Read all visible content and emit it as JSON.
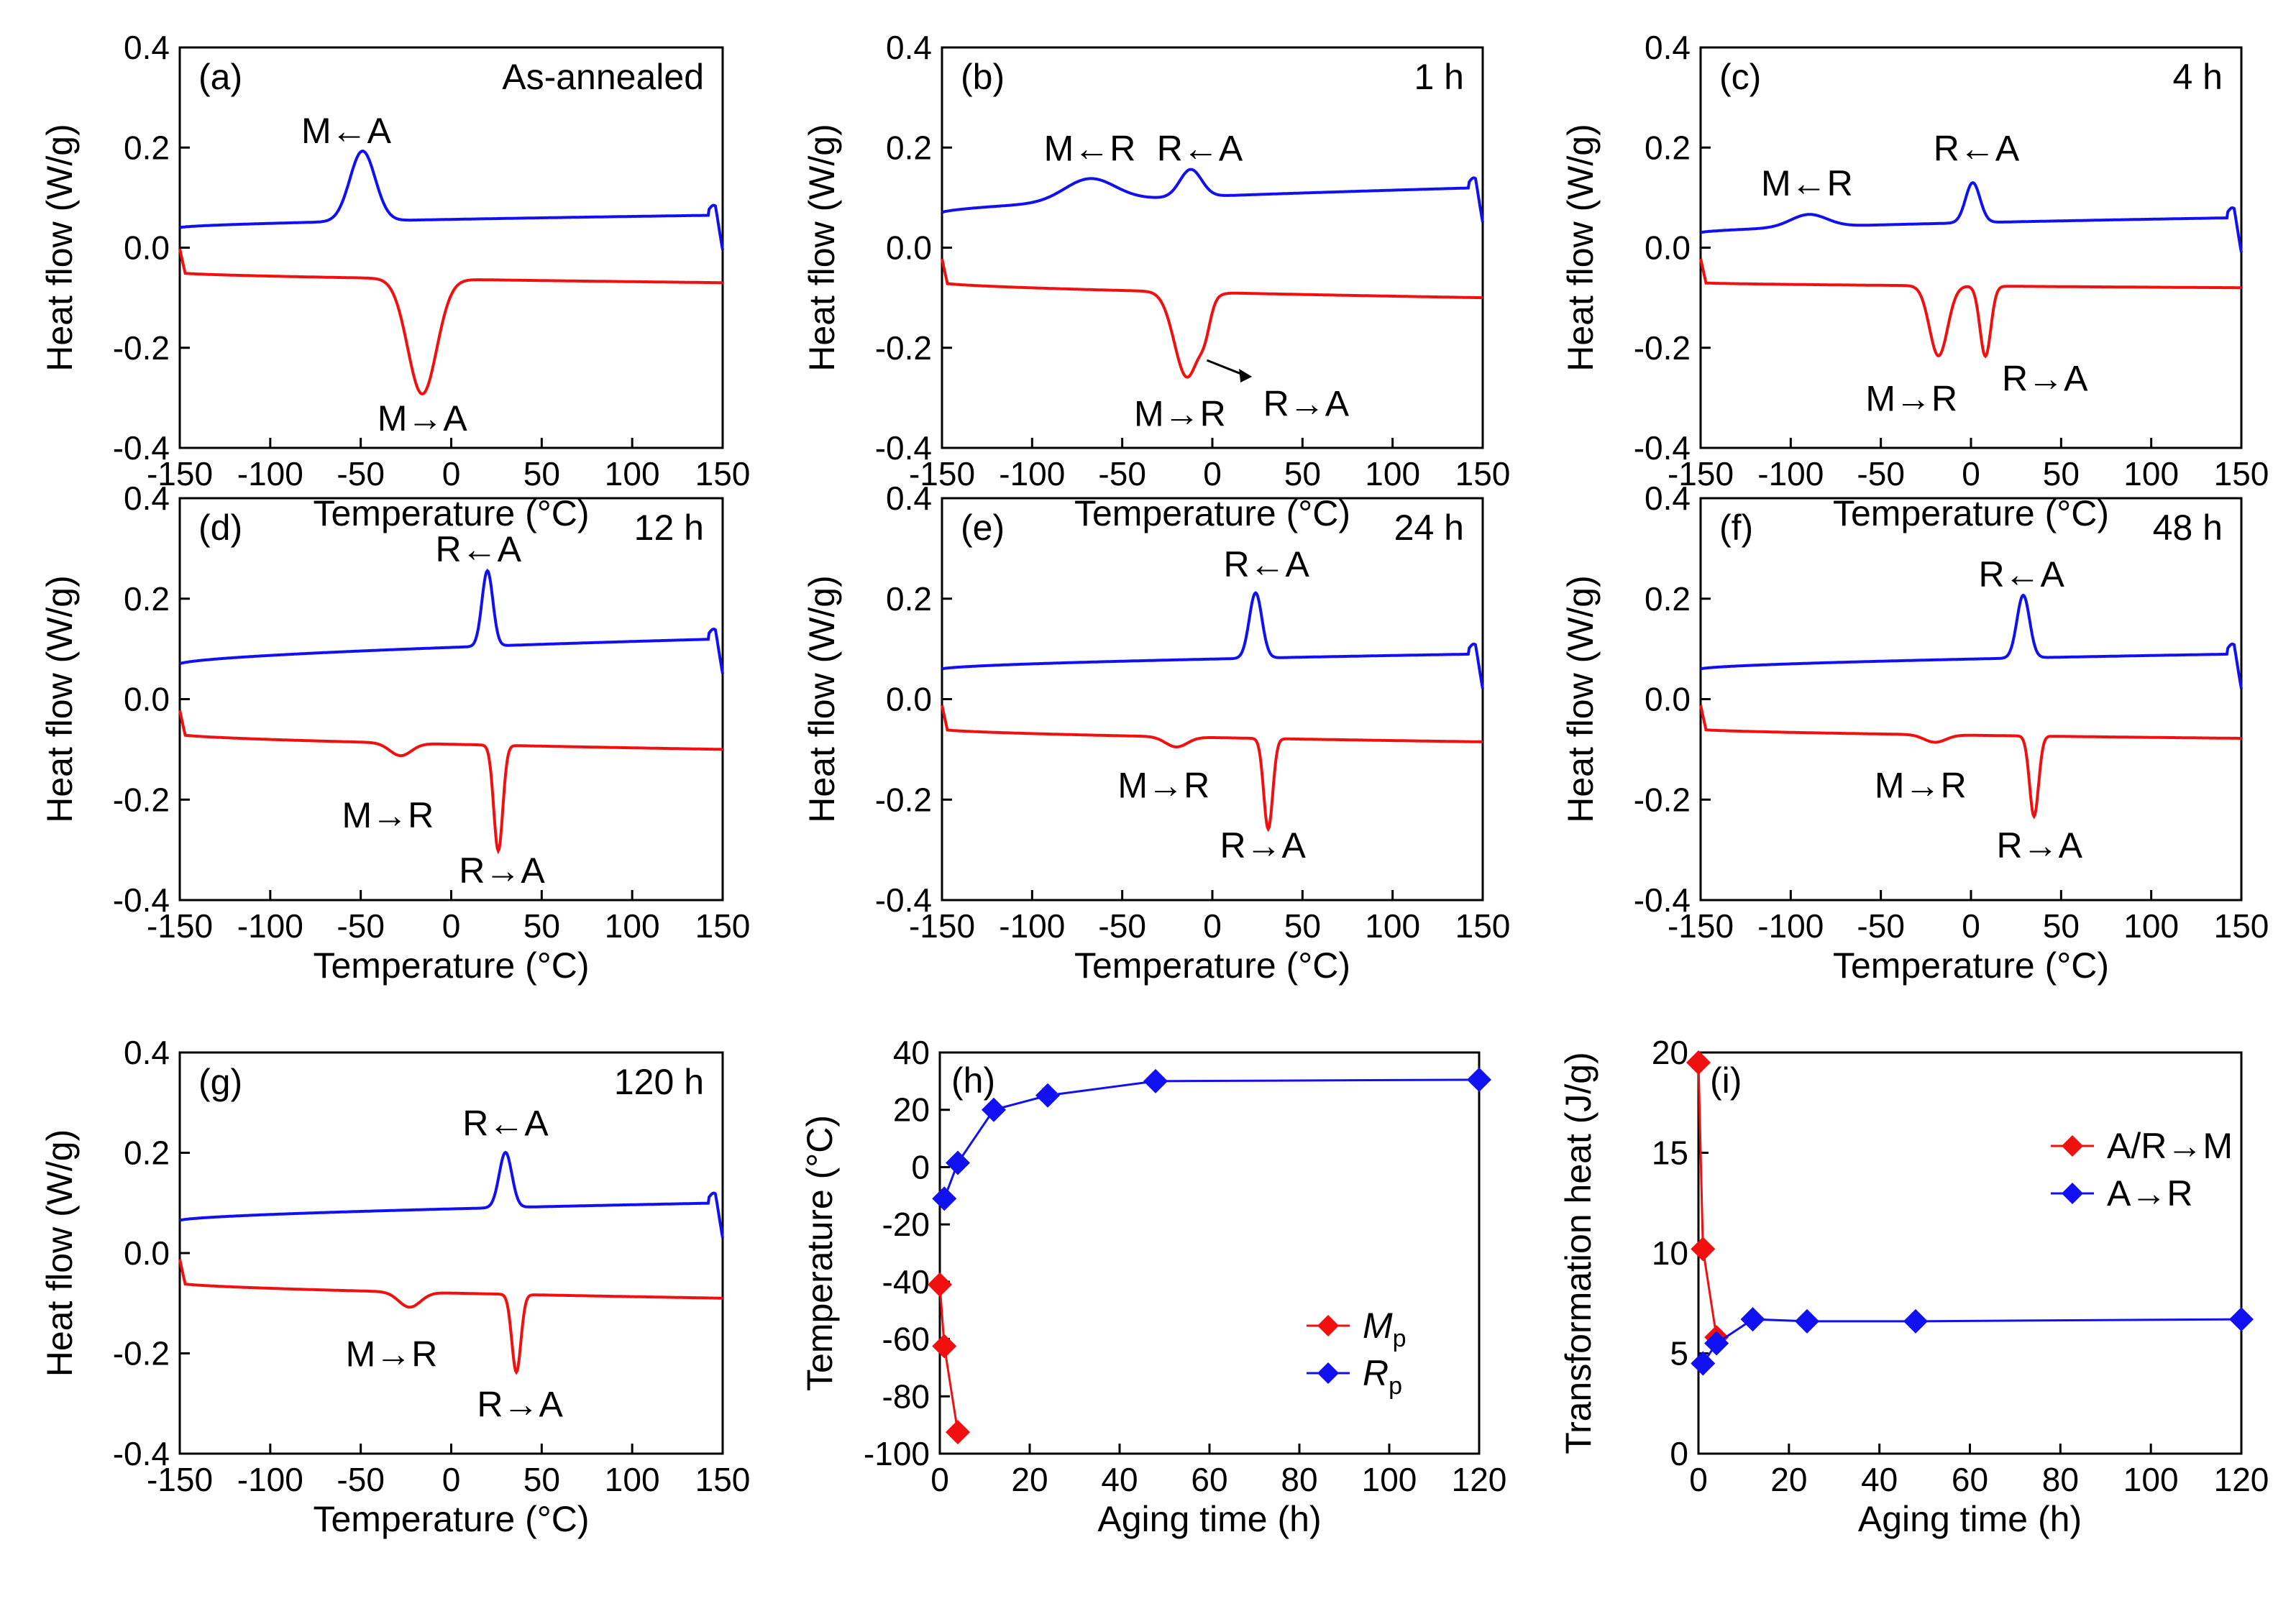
{
  "figure": {
    "colors": {
      "blue": "#1010f0",
      "red": "#f01010",
      "axis": "#000000"
    },
    "dsc_panels": [
      {
        "id": "a",
        "label": "(a)",
        "condition": "As-annealed",
        "xlabel": "Temperature (°C)",
        "ylabel": "Heat flow (W/g)",
        "ylim": [
          -0.4,
          0.4
        ],
        "xlim": [
          -150,
          150
        ],
        "xticks": [
          "-150",
          "-100",
          "-50",
          "0",
          "50",
          "100",
          "150"
        ],
        "yticks": [
          "0.4",
          "0.2",
          "0.0",
          "-0.2",
          "-0.4"
        ],
        "cooling_peaks": [
          {
            "label": "M←A",
            "x": -49,
            "h": 0.14,
            "w": 7
          }
        ],
        "heating_peaks": [
          {
            "label": "M→A",
            "x": -16,
            "h": 0.23,
            "w": 8
          }
        ],
        "cooling_base": [
          0.04,
          0.065
        ],
        "heating_base": [
          -0.05,
          -0.07
        ],
        "annotations": [
          {
            "text": "M←A",
            "x": -58,
            "y": 0.235
          },
          {
            "text": "M→A",
            "x": -16,
            "y": -0.34
          }
        ]
      },
      {
        "id": "b",
        "label": "(b)",
        "condition": "1 h",
        "xlabel": "Temperature (°C)",
        "ylabel": "Heat flow (W/g)",
        "ylim": [
          -0.4,
          0.4
        ],
        "xlim": [
          -150,
          150
        ],
        "xticks": [
          "-150",
          "-100",
          "-50",
          "0",
          "50",
          "100",
          "150"
        ],
        "yticks": [
          "0.4",
          "0.2",
          "0.0",
          "-0.2",
          "-0.4"
        ],
        "cooling_peaks": [
          {
            "label": "M←R",
            "x": -68,
            "h": 0.045,
            "w": 14
          },
          {
            "label": "R←A",
            "x": -12,
            "h": 0.055,
            "w": 6
          }
        ],
        "heating_peaks": [
          {
            "label": "M→R",
            "x": -14,
            "h": 0.17,
            "w": 7
          },
          {
            "label": "R→A",
            "x": -4,
            "h": 0.04,
            "w": 3
          }
        ],
        "cooling_base": [
          0.07,
          0.12
        ],
        "heating_base": [
          -0.07,
          -0.1
        ],
        "annotations": [
          {
            "text": "M←R",
            "x": -68,
            "y": 0.2
          },
          {
            "text": "R←A",
            "x": -7,
            "y": 0.2
          },
          {
            "text": "M→R",
            "x": -18,
            "y": -0.33
          },
          {
            "text": "R→A",
            "x": 52,
            "y": -0.31
          }
        ]
      },
      {
        "id": "c",
        "label": "(c)",
        "condition": "4 h",
        "xlabel": "Temperature (°C)",
        "ylabel": "Heat flow (W/g)",
        "ylim": [
          -0.4,
          0.4
        ],
        "xlim": [
          -150,
          150
        ],
        "xticks": [
          "-150",
          "-100",
          "-50",
          "0",
          "50",
          "100",
          "150"
        ],
        "yticks": [
          "0.4",
          "0.2",
          "0.0",
          "-0.2",
          "-0.4"
        ],
        "cooling_peaks": [
          {
            "label": "M←R",
            "x": -90,
            "h": 0.025,
            "w": 10
          },
          {
            "label": "R←A",
            "x": 1,
            "h": 0.08,
            "w": 4
          }
        ],
        "heating_peaks": [
          {
            "label": "M→R",
            "x": -18,
            "h": 0.14,
            "w": 5
          },
          {
            "label": "R→A",
            "x": 8,
            "h": 0.14,
            "w": 3
          }
        ],
        "cooling_base": [
          0.03,
          0.06
        ],
        "heating_base": [
          -0.07,
          -0.08
        ],
        "annotations": [
          {
            "text": "M←R",
            "x": -91,
            "y": 0.13
          },
          {
            "text": "R←A",
            "x": 3,
            "y": 0.2
          },
          {
            "text": "M→R",
            "x": -33,
            "y": -0.3
          },
          {
            "text": "R→A",
            "x": 41,
            "y": -0.26
          }
        ]
      },
      {
        "id": "d",
        "label": "(d)",
        "condition": "12 h",
        "xlabel": "Temperature (°C)",
        "ylabel": "Heat flow (W/g)",
        "ylim": [
          -0.4,
          0.4
        ],
        "xlim": [
          -150,
          150
        ],
        "xticks": [
          "-150",
          "-100",
          "-50",
          "0",
          "50",
          "100",
          "150"
        ],
        "yticks": [
          "0.4",
          "0.2",
          "0.0",
          "-0.2",
          "-0.4"
        ],
        "cooling_peaks": [
          {
            "label": "R←A",
            "x": 20,
            "h": 0.15,
            "w": 3
          }
        ],
        "heating_peaks": [
          {
            "label": "M→R",
            "x": -28,
            "h": 0.025,
            "w": 6
          },
          {
            "label": "R→A",
            "x": 26,
            "h": 0.21,
            "w": 2.5
          }
        ],
        "cooling_base": [
          0.07,
          0.12
        ],
        "heating_base": [
          -0.07,
          -0.1
        ],
        "annotations": [
          {
            "text": "R←A",
            "x": 15,
            "y": 0.3
          },
          {
            "text": "M→R",
            "x": -35,
            "y": -0.23
          },
          {
            "text": "R→A",
            "x": 28,
            "y": -0.34
          }
        ]
      },
      {
        "id": "e",
        "label": "(e)",
        "condition": "24 h",
        "xlabel": "Temperature (°C)",
        "ylabel": "Heat flow (W/g)",
        "ylim": [
          -0.4,
          0.4
        ],
        "xlim": [
          -150,
          150
        ],
        "xticks": [
          "-150",
          "-100",
          "-50",
          "0",
          "50",
          "100",
          "150"
        ],
        "yticks": [
          "0.4",
          "0.2",
          "0.0",
          "-0.2",
          "-0.4"
        ],
        "cooling_peaks": [
          {
            "label": "R←A",
            "x": 24,
            "h": 0.13,
            "w": 3.5
          }
        ],
        "heating_peaks": [
          {
            "label": "M→R",
            "x": -20,
            "h": 0.02,
            "w": 6
          },
          {
            "label": "R→A",
            "x": 31,
            "h": 0.18,
            "w": 2.5
          }
        ],
        "cooling_base": [
          0.06,
          0.09
        ],
        "heating_base": [
          -0.06,
          -0.085
        ],
        "annotations": [
          {
            "text": "R←A",
            "x": 30,
            "y": 0.27
          },
          {
            "text": "M→R",
            "x": -27,
            "y": -0.17
          },
          {
            "text": "R→A",
            "x": 28,
            "y": -0.29
          }
        ]
      },
      {
        "id": "f",
        "label": "(f)",
        "condition": "48 h",
        "xlabel": "Temperature (°C)",
        "ylabel": "Heat flow (W/g)",
        "ylim": [
          -0.4,
          0.4
        ],
        "xlim": [
          -150,
          150
        ],
        "xticks": [
          "-150",
          "-100",
          "-50",
          "0",
          "50",
          "100",
          "150"
        ],
        "yticks": [
          "0.4",
          "0.2",
          "0.0",
          "-0.2",
          "-0.4"
        ],
        "cooling_peaks": [
          {
            "label": "R←A",
            "x": 29,
            "h": 0.125,
            "w": 3.5
          }
        ],
        "heating_peaks": [
          {
            "label": "M→R",
            "x": -20,
            "h": 0.015,
            "w": 6
          },
          {
            "label": "R→A",
            "x": 35,
            "h": 0.16,
            "w": 2.5
          }
        ],
        "cooling_base": [
          0.06,
          0.09
        ],
        "heating_base": [
          -0.06,
          -0.078
        ],
        "annotations": [
          {
            "text": "R←A",
            "x": 28,
            "y": 0.25
          },
          {
            "text": "M→R",
            "x": -28,
            "y": -0.17
          },
          {
            "text": "R→A",
            "x": 38,
            "y": -0.29
          }
        ]
      },
      {
        "id": "g",
        "label": "(g)",
        "condition": "120 h",
        "xlabel": "Temperature (°C)",
        "ylabel": "Heat flow (W/g)",
        "ylim": [
          -0.4,
          0.4
        ],
        "xlim": [
          -150,
          150
        ],
        "xticks": [
          "-150",
          "-100",
          "-50",
          "0",
          "50",
          "100",
          "150"
        ],
        "yticks": [
          "0.4",
          "0.2",
          "0.0",
          "-0.2",
          "-0.4"
        ],
        "cooling_peaks": [
          {
            "label": "R←A",
            "x": 30,
            "h": 0.11,
            "w": 3.5
          }
        ],
        "heating_peaks": [
          {
            "label": "M→R",
            "x": -23,
            "h": 0.03,
            "w": 6
          },
          {
            "label": "R→A",
            "x": 36,
            "h": 0.155,
            "w": 2.5
          }
        ],
        "cooling_base": [
          0.065,
          0.1
        ],
        "heating_base": [
          -0.06,
          -0.09
        ],
        "annotations": [
          {
            "text": "R←A",
            "x": 30,
            "y": 0.26
          },
          {
            "text": "M→R",
            "x": -33,
            "y": -0.2
          },
          {
            "text": "R→A",
            "x": 38,
            "y": -0.3
          }
        ]
      }
    ],
    "chart_data": [
      {
        "type": "line",
        "panel": "(h)",
        "title": "",
        "xlabel": "Aging time (h)",
        "ylabel": "Temperature (°C)",
        "xlim": [
          0,
          120
        ],
        "ylim": [
          -100,
          40
        ],
        "xticks": [
          "0",
          "20",
          "40",
          "60",
          "80",
          "100",
          "120"
        ],
        "yticks": [
          "40",
          "20",
          "0",
          "-20",
          "-40",
          "-60",
          "-80",
          "-100"
        ],
        "legend_position": "right",
        "series": [
          {
            "name": "M",
            "subscript": "p",
            "color": "#f01010",
            "x": [
              0,
              1,
              4
            ],
            "y": [
              -41,
              -62.5,
              -92.5
            ]
          },
          {
            "name": "R",
            "subscript": "p",
            "color": "#1010f0",
            "x": [
              1,
              4,
              12,
              24,
              48,
              120
            ],
            "y": [
              -11,
              1.5,
              20,
              25,
              30,
              30.5
            ]
          }
        ]
      },
      {
        "type": "line",
        "panel": "(i)",
        "title": "",
        "xlabel": "Aging time (h)",
        "ylabel": "Transformation heat (J/g)",
        "xlim": [
          0,
          120
        ],
        "ylim": [
          0,
          20
        ],
        "xticks": [
          "0",
          "20",
          "40",
          "60",
          "80",
          "100",
          "120"
        ],
        "yticks": [
          "20",
          "15",
          "10",
          "5",
          "0"
        ],
        "legend_position": "top-right",
        "series": [
          {
            "name": "A/R→M",
            "color": "#f01010",
            "x": [
              0,
              1,
              4
            ],
            "y": [
              19.5,
              10.2,
              5.8
            ]
          },
          {
            "name": "A→R",
            "color": "#1010f0",
            "x": [
              1,
              4,
              12,
              24,
              48,
              120
            ],
            "y": [
              4.5,
              5.5,
              6.7,
              6.6,
              6.6,
              6.7
            ]
          }
        ]
      }
    ]
  }
}
